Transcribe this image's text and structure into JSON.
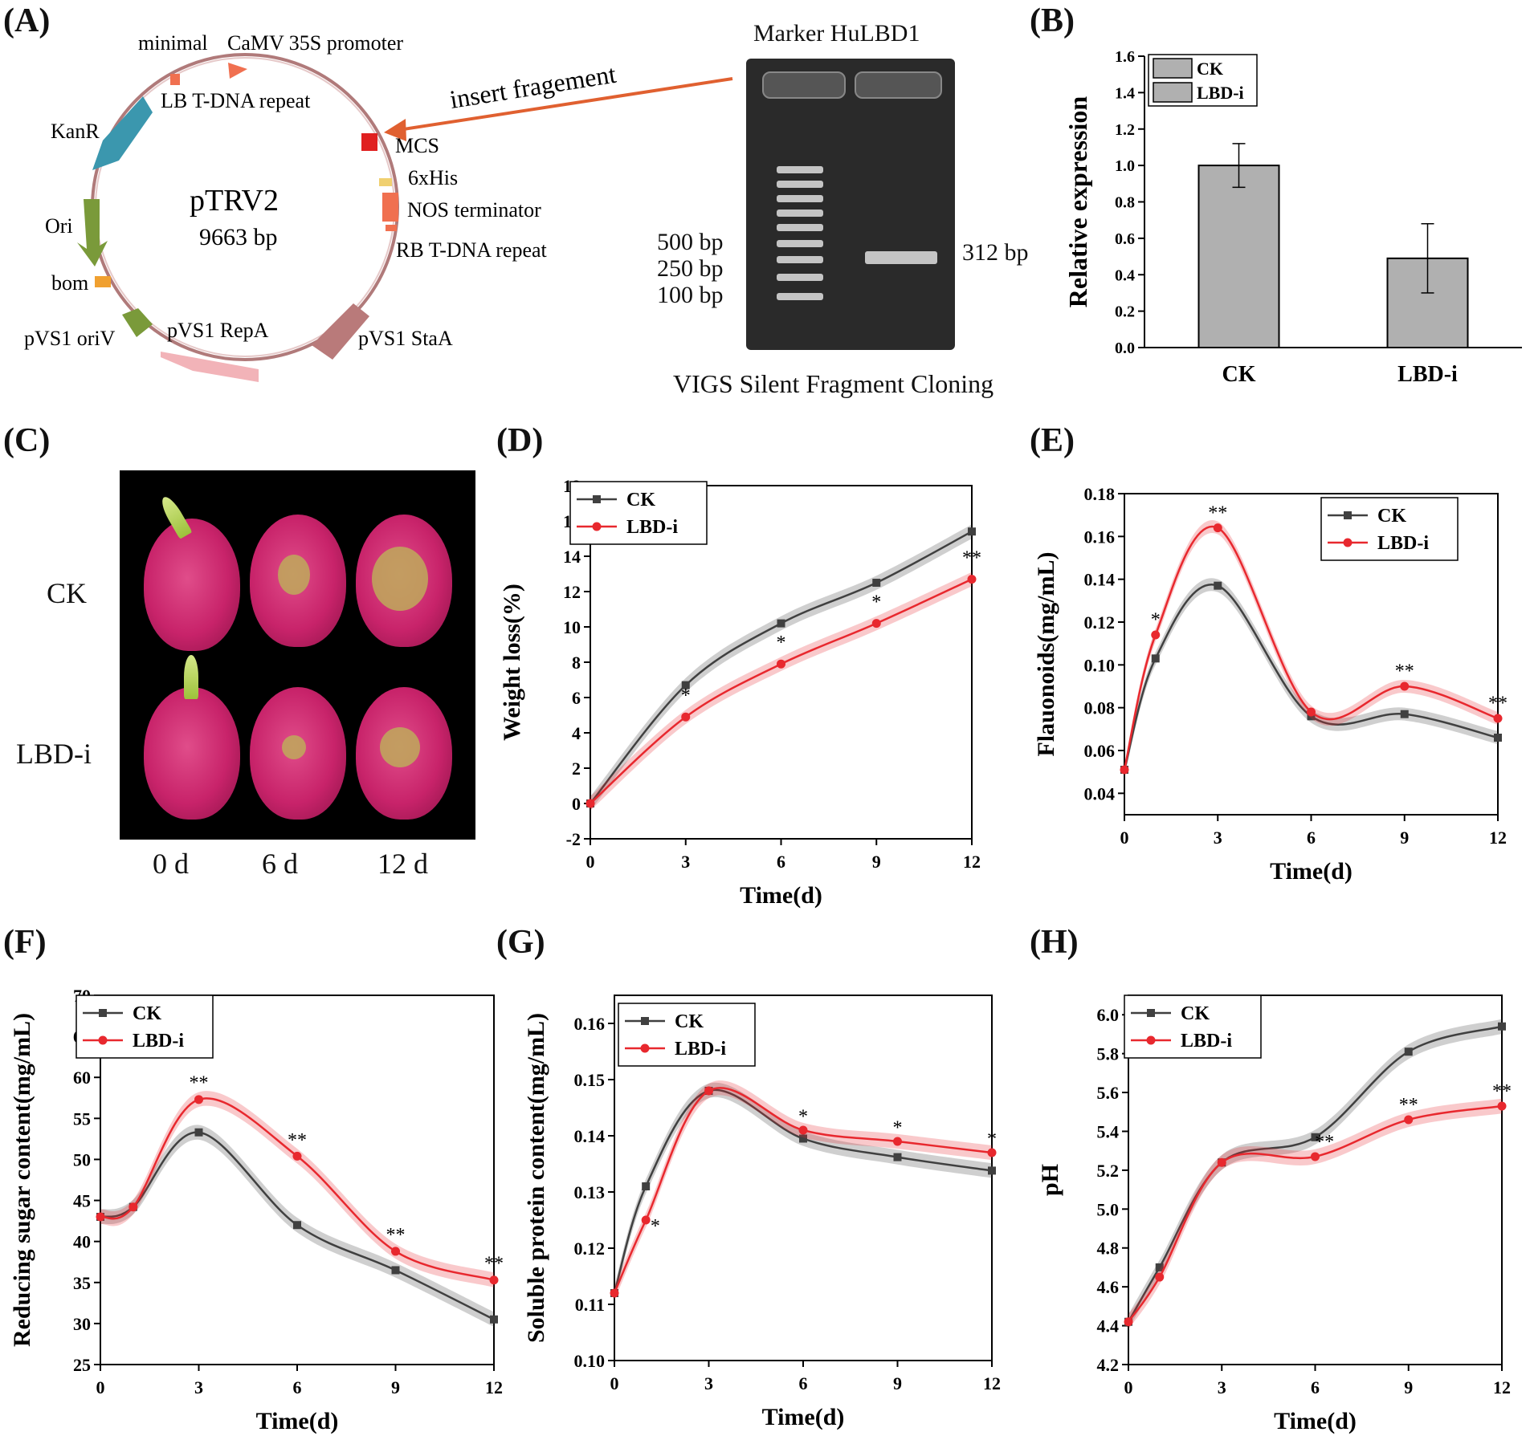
{
  "panels": {
    "A": "(A)",
    "B": "(B)",
    "C": "(C)",
    "D": "(D)",
    "E": "(E)",
    "F": "(F)",
    "G": "(G)",
    "H": "(H)"
  },
  "plasmid": {
    "name": "pTRV2",
    "size": "9663 bp",
    "labels": {
      "minimal": "minimal",
      "promoter": "CaMV  35S promoter",
      "lb": "LB  T-DNA repeat",
      "kanr": "KanR",
      "mcs": "MCS",
      "his": "6xHis",
      "nos": "NOS  terminator",
      "rb": "RB  T-DNA  repeat",
      "ori": "Ori",
      "bom": "bom",
      "oriv": "pVS1 oriV",
      "repa": "pVS1 RepA",
      "staa": "pVS1 StaA",
      "insert": "insert fragement"
    }
  },
  "gel": {
    "header": "Marker HuLBD1",
    "ladder": [
      "500 bp",
      "250 bp",
      "100 bp"
    ],
    "band": "312 bp",
    "caption": "VIGS Silent Fragment Cloning"
  },
  "fruit": {
    "rows": [
      "CK",
      "LBD-i"
    ],
    "cols": [
      "0 d",
      "6 d",
      "12 d"
    ]
  },
  "colors": {
    "ck": "#404040",
    "lbd": "#e8282e",
    "bar": "#b0b0b0"
  },
  "chart_data": [
    {
      "id": "B",
      "type": "bar",
      "categories": [
        "CK",
        "LBD-i"
      ],
      "values": [
        1.0,
        0.49
      ],
      "errors": [
        0.12,
        0.19
      ],
      "legend": [
        "CK",
        "LBD-i"
      ],
      "xlabel": "",
      "ylabel": "Relative expression",
      "ylim": [
        0,
        1.6
      ],
      "yticks": [
        "0.0",
        "0.2",
        "0.4",
        "0.6",
        "0.8",
        "1.0",
        "1.2",
        "1.4",
        "1.6"
      ]
    },
    {
      "id": "D",
      "type": "line",
      "xlabel": "Time(d)",
      "ylabel": "Weight loss(%)",
      "xlim": [
        0,
        12
      ],
      "ylim": [
        -2,
        18
      ],
      "xticks": [
        "0",
        "3",
        "6",
        "9",
        "12"
      ],
      "yticks": [
        "-2",
        "0",
        "2",
        "4",
        "6",
        "8",
        "10",
        "12",
        "14",
        "16",
        "18"
      ],
      "legend_position": "top-left",
      "series": [
        {
          "name": "CK",
          "x": [
            0,
            3,
            6,
            9,
            12
          ],
          "y": [
            0,
            6.7,
            10.2,
            12.5,
            15.4
          ]
        },
        {
          "name": "LBD-i",
          "x": [
            0,
            3,
            6,
            9,
            12
          ],
          "y": [
            0,
            4.9,
            7.9,
            10.2,
            12.7
          ]
        }
      ],
      "annotations": [
        {
          "x": 3,
          "y": 5.5,
          "text": "*"
        },
        {
          "x": 6,
          "y": 8.5,
          "text": "*"
        },
        {
          "x": 9,
          "y": 10.8,
          "text": "*"
        },
        {
          "x": 12,
          "y": 13.3,
          "text": "**"
        }
      ]
    },
    {
      "id": "E",
      "type": "line",
      "xlabel": "Time(d)",
      "ylabel": "Flauonoids(mg/mL)",
      "xlim": [
        0,
        12
      ],
      "ylim": [
        0.03,
        0.18
      ],
      "xticks": [
        "0",
        "3",
        "6",
        "9",
        "12"
      ],
      "yticks": [
        "0.04",
        "0.06",
        "0.08",
        "0.10",
        "0.12",
        "0.14",
        "0.16",
        "0.18"
      ],
      "legend_position": "top-right",
      "series": [
        {
          "name": "CK",
          "x": [
            0,
            1,
            3,
            6,
            9,
            12
          ],
          "y": [
            0.051,
            0.103,
            0.137,
            0.076,
            0.077,
            0.066
          ]
        },
        {
          "name": "LBD-i",
          "x": [
            0,
            1,
            3,
            6,
            9,
            12
          ],
          "y": [
            0.051,
            0.114,
            0.164,
            0.078,
            0.09,
            0.075
          ]
        }
      ],
      "annotations": [
        {
          "x": 1,
          "y": 0.116,
          "text": "*"
        },
        {
          "x": 3,
          "y": 0.166,
          "text": "**"
        },
        {
          "x": 9,
          "y": 0.092,
          "text": "**"
        },
        {
          "x": 12,
          "y": 0.077,
          "text": "**"
        }
      ]
    },
    {
      "id": "F",
      "type": "line",
      "xlabel": "Time(d)",
      "ylabel": "Reducing sugar content(mg/mL)",
      "xlim": [
        0,
        12
      ],
      "ylim": [
        25,
        70
      ],
      "xticks": [
        "0",
        "3",
        "6",
        "9",
        "12"
      ],
      "yticks": [
        "25",
        "30",
        "35",
        "40",
        "45",
        "50",
        "55",
        "60",
        "65",
        "70"
      ],
      "legend_position": "top-left",
      "series": [
        {
          "name": "CK",
          "x": [
            0,
            1,
            3,
            6,
            9,
            12
          ],
          "y": [
            43.0,
            44.2,
            53.3,
            42.0,
            36.5,
            30.5
          ]
        },
        {
          "name": "LBD-i",
          "x": [
            0,
            1,
            3,
            6,
            9,
            12
          ],
          "y": [
            43.0,
            44.2,
            57.3,
            50.4,
            38.8,
            35.3
          ]
        }
      ],
      "annotations": [
        {
          "x": 3,
          "y": 58.0,
          "text": "**"
        },
        {
          "x": 6,
          "y": 51.0,
          "text": "**"
        },
        {
          "x": 9,
          "y": 39.5,
          "text": "**"
        },
        {
          "x": 12,
          "y": 36.0,
          "text": "**"
        }
      ]
    },
    {
      "id": "G",
      "type": "line",
      "xlabel": "Time(d)",
      "ylabel": "Soluble protein content(mg/mL)",
      "xlim": [
        0,
        12
      ],
      "ylim": [
        0.1,
        0.165
      ],
      "xticks": [
        "0",
        "3",
        "6",
        "9",
        "12"
      ],
      "yticks": [
        "0.10",
        "0.11",
        "0.12",
        "0.13",
        "0.14",
        "0.15",
        "0.16"
      ],
      "legend_position": "top-left",
      "series": [
        {
          "name": "CK",
          "x": [
            0,
            1,
            3,
            6,
            9,
            12
          ],
          "y": [
            0.112,
            0.131,
            0.148,
            0.1395,
            0.1362,
            0.1338
          ]
        },
        {
          "name": "LBD-i",
          "x": [
            0,
            1,
            3,
            6,
            9,
            12
          ],
          "y": [
            0.112,
            0.125,
            0.148,
            0.141,
            0.139,
            0.137
          ]
        }
      ],
      "annotations": [
        {
          "x": 1.3,
          "y": 0.122,
          "text": "*"
        },
        {
          "x": 6,
          "y": 0.1415,
          "text": "*"
        },
        {
          "x": 9,
          "y": 0.1395,
          "text": "*"
        },
        {
          "x": 12,
          "y": 0.1375,
          "text": "*"
        }
      ]
    },
    {
      "id": "H",
      "type": "line",
      "xlabel": "Time(d)",
      "ylabel": "pH",
      "xlim": [
        0,
        12
      ],
      "ylim": [
        4.2,
        6.1
      ],
      "xticks": [
        "0",
        "3",
        "6",
        "9",
        "12"
      ],
      "yticks": [
        "4.2",
        "4.4",
        "4.6",
        "4.8",
        "5.0",
        "5.2",
        "5.4",
        "5.6",
        "5.8",
        "6.0"
      ],
      "legend_position": "top-left",
      "series": [
        {
          "name": "CK",
          "x": [
            0,
            1,
            3,
            6,
            9,
            12
          ],
          "y": [
            4.42,
            4.7,
            5.24,
            5.37,
            5.81,
            5.94
          ]
        },
        {
          "name": "LBD-i",
          "x": [
            0,
            1,
            3,
            6,
            9,
            12
          ],
          "y": [
            4.42,
            4.65,
            5.24,
            5.27,
            5.46,
            5.53
          ]
        }
      ],
      "annotations": [
        {
          "x": 6.3,
          "y": 5.29,
          "text": "**"
        },
        {
          "x": 9,
          "y": 5.48,
          "text": "**"
        },
        {
          "x": 12,
          "y": 5.55,
          "text": "**"
        }
      ]
    }
  ]
}
